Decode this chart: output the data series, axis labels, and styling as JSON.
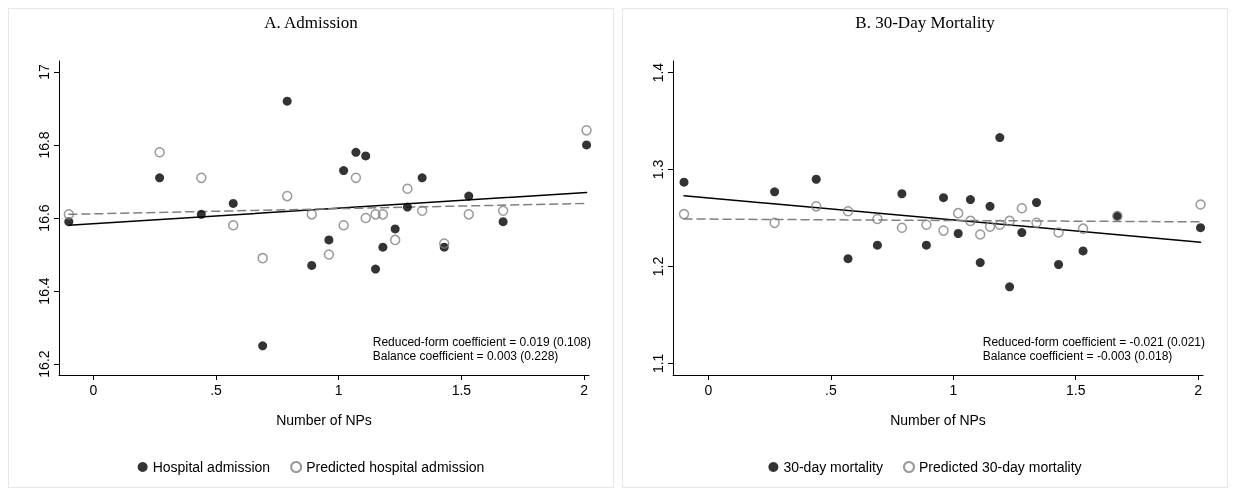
{
  "chart_data": [
    {
      "type": "scatter",
      "title": "A. Admission",
      "xlabel": "Number of NPs",
      "xlim": [
        -0.14,
        2.02
      ],
      "xticks": [
        0,
        {
          "value": 0.5,
          "label": ".5"
        },
        1,
        1.5,
        2
      ],
      "ylim": [
        16.17,
        17.03
      ],
      "yticks": [
        16.2,
        16.4,
        16.6,
        16.8,
        17
      ],
      "legend": "bottom",
      "marker": "circle",
      "annotations": [
        "Reduced-form coefficient = 0.019 (0.108)",
        "Balance coefficient = 0.003 (0.228)"
      ],
      "series": [
        {
          "name": "Hospital admission",
          "color": "#000000",
          "x": [
            -0.1,
            0.27,
            0.44,
            0.57,
            0.69,
            0.79,
            0.89,
            0.96,
            1.02,
            1.07,
            1.11,
            1.15,
            1.18,
            1.23,
            1.28,
            1.34,
            1.43,
            1.53,
            1.67,
            2.01
          ],
          "values": [
            16.59,
            16.71,
            16.61,
            16.64,
            16.25,
            16.92,
            16.47,
            16.54,
            16.73,
            16.78,
            16.77,
            16.46,
            16.52,
            16.57,
            16.63,
            16.71,
            16.52,
            16.66,
            16.59,
            16.8
          ]
        },
        {
          "name": "Predicted hospital admission",
          "color": "#808080",
          "x": [
            -0.1,
            0.27,
            0.44,
            0.57,
            0.69,
            0.79,
            0.89,
            0.96,
            1.02,
            1.07,
            1.11,
            1.15,
            1.18,
            1.23,
            1.28,
            1.34,
            1.43,
            1.53,
            1.67,
            2.01
          ],
          "values": [
            16.61,
            16.78,
            16.71,
            16.58,
            16.49,
            16.66,
            16.61,
            16.5,
            16.58,
            16.71,
            16.6,
            16.61,
            16.61,
            16.54,
            16.68,
            16.62,
            16.53,
            16.61,
            16.62,
            16.84
          ]
        },
        {
          "type": "line",
          "marker": "none",
          "color": "#000000",
          "line_style": "solid",
          "x": [
            -0.1,
            2.01
          ],
          "values": [
            16.58,
            16.67
          ]
        },
        {
          "type": "line",
          "marker": "none",
          "color": "#808080",
          "line_style": "dashed",
          "x": [
            -0.1,
            2.01
          ],
          "values": [
            16.61,
            16.64
          ]
        }
      ]
    },
    {
      "type": "scatter",
      "title": "B. 30-Day Mortality",
      "xlabel": "Number of NPs",
      "xlim": [
        -0.145,
        2.02
      ],
      "xticks": [
        0,
        {
          "value": 0.5,
          "label": ".5"
        },
        1,
        1.5,
        2
      ],
      "ylim": [
        1.088,
        1.412
      ],
      "yticks": [
        1.1,
        1.2,
        1.3,
        1.4
      ],
      "legend": "bottom",
      "marker": "circle",
      "annotations": [
        "Reduced-form coefficient = -0.021 (0.021)",
        "Balance coefficient = -0.003 (0.018)"
      ],
      "series": [
        {
          "name": "30-day mortality",
          "color": "#000000",
          "x": [
            -0.1,
            0.27,
            0.44,
            0.57,
            0.69,
            0.79,
            0.89,
            0.96,
            1.02,
            1.07,
            1.11,
            1.15,
            1.19,
            1.23,
            1.28,
            1.34,
            1.43,
            1.53,
            1.67,
            2.01
          ],
          "values": [
            1.287,
            1.277,
            1.29,
            1.208,
            1.222,
            1.275,
            1.222,
            1.271,
            1.234,
            1.269,
            1.204,
            1.262,
            1.333,
            1.179,
            1.235,
            1.266,
            1.202,
            1.216,
            1.252,
            1.24
          ]
        },
        {
          "name": "Predicted 30-day mortality",
          "color": "#808080",
          "x": [
            -0.1,
            0.27,
            0.44,
            0.57,
            0.69,
            0.79,
            0.89,
            0.96,
            1.02,
            1.07,
            1.11,
            1.15,
            1.19,
            1.23,
            1.28,
            1.34,
            1.43,
            1.53,
            1.67,
            2.01
          ],
          "values": [
            1.254,
            1.245,
            1.262,
            1.257,
            1.249,
            1.24,
            1.243,
            1.237,
            1.255,
            1.247,
            1.233,
            1.241,
            1.243,
            1.247,
            1.26,
            1.245,
            1.235,
            1.239,
            1.252,
            1.264
          ]
        },
        {
          "type": "line",
          "marker": "none",
          "color": "#000000",
          "line_style": "solid",
          "x": [
            -0.1,
            2.01
          ],
          "values": [
            1.273,
            1.225
          ]
        },
        {
          "type": "line",
          "marker": "none",
          "color": "#808080",
          "line_style": "dashed",
          "x": [
            -0.1,
            2.01
          ],
          "values": [
            1.249,
            1.246
          ]
        }
      ]
    }
  ]
}
